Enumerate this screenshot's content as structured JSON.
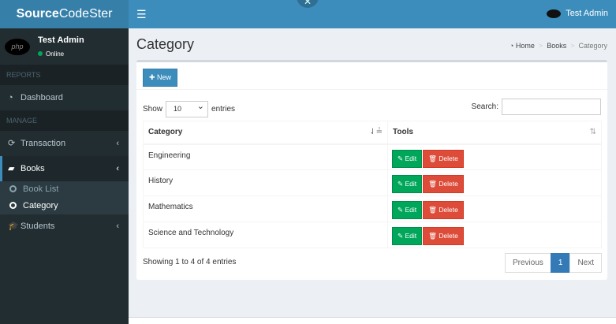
{
  "brand": {
    "bold": "Source",
    "rest": "CodeSter"
  },
  "topbar": {
    "user": "Test Admin"
  },
  "sidebar": {
    "user": "Test Admin",
    "status": "Online",
    "avatar_text": "php",
    "headers": [
      "REPORTS",
      "MANAGE"
    ],
    "items": [
      {
        "label": "Dashboard",
        "icon": "dashboard-icon"
      },
      {
        "label": "Transaction",
        "icon": "refresh-icon"
      },
      {
        "label": "Books",
        "icon": "book-icon"
      },
      {
        "label": "Students",
        "icon": "graduation-cap-icon"
      }
    ],
    "sub": [
      "Book List",
      "Category"
    ]
  },
  "page": {
    "title": "Category",
    "breadcrumb": [
      "Home",
      "Books",
      "Category"
    ]
  },
  "box": {
    "new_label": "New",
    "show": "Show",
    "entries": "entries",
    "length": "10",
    "search_label": "Search:",
    "columns": [
      "Category",
      "Tools"
    ],
    "rows": [
      "Engineering",
      "History",
      "Mathematics",
      "Science and Technology"
    ],
    "edit": "Edit",
    "delete": "Delete",
    "info": "Showing 1 to 4 of 4 entries",
    "pagination": {
      "prev": "Previous",
      "page": "1",
      "next": "Next"
    }
  },
  "colors": {
    "primary": "#3c8dbc",
    "success": "#00a65a",
    "danger": "#dd4b39",
    "sidebar": "#222d32"
  }
}
